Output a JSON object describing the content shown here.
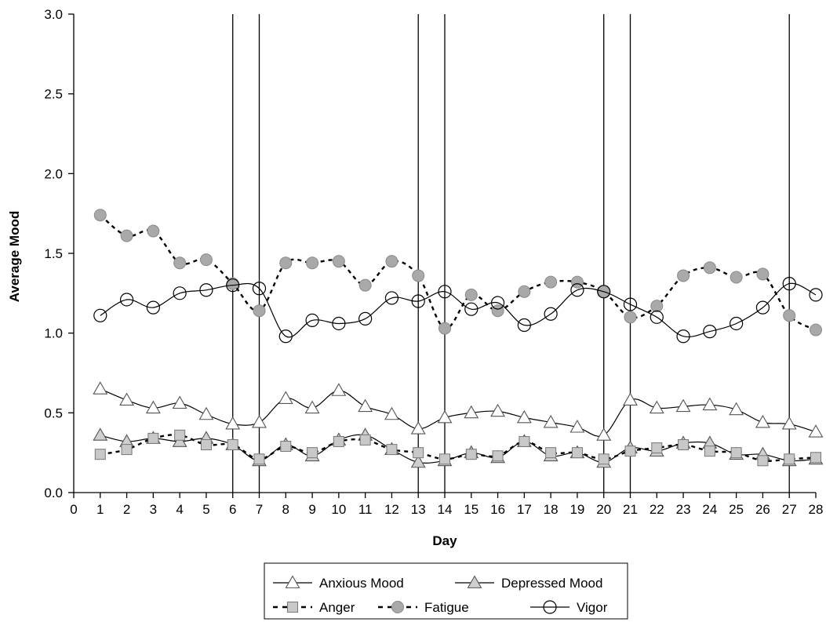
{
  "chart_data": {
    "type": "line",
    "xlabel": "Day",
    "ylabel": "Average Mood",
    "xlim": [
      0,
      28
    ],
    "ylim": [
      0,
      3.0
    ],
    "x_ticks": [
      0,
      1,
      2,
      3,
      4,
      5,
      6,
      7,
      8,
      9,
      10,
      11,
      12,
      13,
      14,
      15,
      16,
      17,
      18,
      19,
      20,
      21,
      22,
      23,
      24,
      25,
      26,
      27,
      28
    ],
    "y_ticks": [
      "0.0",
      "0.5",
      "1.0",
      "1.5",
      "2.0",
      "2.5",
      "3.0"
    ],
    "vertical_lines": [
      6,
      7,
      13,
      14,
      20,
      21,
      27
    ],
    "grid": false,
    "legend_position": "bottom",
    "x": [
      1,
      2,
      3,
      4,
      5,
      6,
      7,
      8,
      9,
      10,
      11,
      12,
      13,
      14,
      15,
      16,
      17,
      18,
      19,
      20,
      21,
      22,
      23,
      24,
      25,
      26,
      27,
      28
    ],
    "series": [
      {
        "name": "Anxious Mood",
        "marker": "triangle-open",
        "line": "solid",
        "values": [
          0.65,
          0.58,
          0.53,
          0.56,
          0.49,
          0.43,
          0.44,
          0.59,
          0.53,
          0.64,
          0.54,
          0.49,
          0.4,
          0.47,
          0.5,
          0.51,
          0.47,
          0.44,
          0.41,
          0.36,
          0.58,
          0.53,
          0.54,
          0.55,
          0.52,
          0.44,
          0.43,
          0.38
        ]
      },
      {
        "name": "Depressed Mood",
        "marker": "triangle-gray",
        "line": "solid",
        "values": [
          0.36,
          0.32,
          0.34,
          0.32,
          0.34,
          0.3,
          0.2,
          0.3,
          0.23,
          0.33,
          0.36,
          0.27,
          0.19,
          0.2,
          0.25,
          0.22,
          0.32,
          0.23,
          0.25,
          0.19,
          0.28,
          0.26,
          0.31,
          0.31,
          0.24,
          0.24,
          0.2,
          0.21
        ]
      },
      {
        "name": "Anger",
        "marker": "square-gray",
        "line": "dashed",
        "values": [
          0.24,
          0.27,
          0.34,
          0.36,
          0.3,
          0.3,
          0.21,
          0.29,
          0.25,
          0.32,
          0.33,
          0.27,
          0.25,
          0.21,
          0.24,
          0.23,
          0.32,
          0.25,
          0.25,
          0.21,
          0.26,
          0.28,
          0.3,
          0.26,
          0.25,
          0.2,
          0.21,
          0.22
        ]
      },
      {
        "name": "Fatigue",
        "marker": "circle-gray",
        "line": "dashed",
        "values": [
          1.74,
          1.61,
          1.64,
          1.44,
          1.46,
          1.31,
          1.14,
          1.44,
          1.44,
          1.45,
          1.3,
          1.45,
          1.36,
          1.03,
          1.24,
          1.14,
          1.26,
          1.32,
          1.32,
          1.26,
          1.1,
          1.17,
          1.36,
          1.41,
          1.35,
          1.37,
          1.11,
          1.02
        ]
      },
      {
        "name": "Vigor",
        "marker": "circle-open",
        "line": "solid",
        "values": [
          1.11,
          1.21,
          1.16,
          1.25,
          1.27,
          1.3,
          1.28,
          0.98,
          1.08,
          1.06,
          1.09,
          1.22,
          1.2,
          1.26,
          1.15,
          1.19,
          1.05,
          1.12,
          1.27,
          1.26,
          1.18,
          1.1,
          0.98,
          1.01,
          1.06,
          1.16,
          1.31,
          1.24
        ]
      }
    ],
    "legend_rows": [
      [
        "Anxious Mood",
        "Depressed Mood"
      ],
      [
        "Anger",
        "Fatigue",
        "Vigor"
      ]
    ]
  }
}
